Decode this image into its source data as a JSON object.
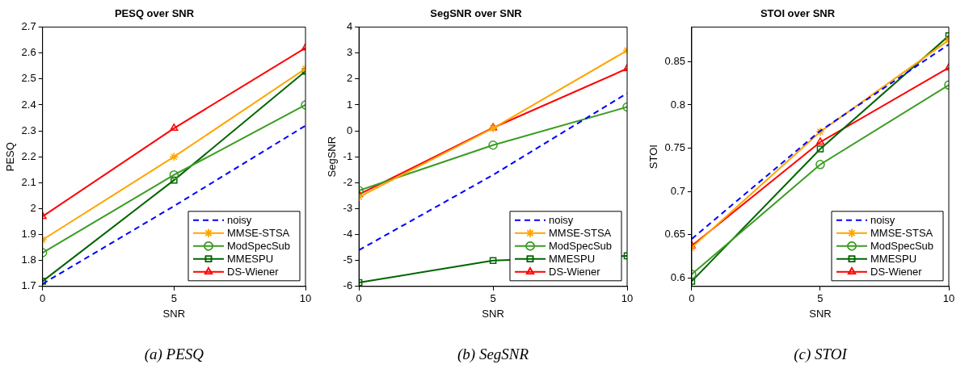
{
  "chart_data": [
    {
      "type": "line",
      "title": "PESQ over SNR",
      "xlabel": "SNR",
      "ylabel": "PESQ",
      "annotations": [
        "(a) PESQ"
      ],
      "x": [
        0,
        5,
        10
      ],
      "xlim": [
        0,
        10
      ],
      "xticks": [
        0,
        5,
        10
      ],
      "ylim": [
        1.7,
        2.7
      ],
      "yticks": [
        1.7,
        1.8,
        1.9,
        2,
        2.1,
        2.2,
        2.3,
        2.4,
        2.5,
        2.6,
        2.7
      ],
      "legend": "bottom right",
      "series": [
        {
          "name": "noisy",
          "color": "#0000ff",
          "values": [
            1.71,
            2.01,
            2.32
          ],
          "marker": "none",
          "line_style": "dashed"
        },
        {
          "name": "MMSE-STSA",
          "color": "#ffa500",
          "values": [
            1.88,
            2.2,
            2.54
          ],
          "marker": "cross",
          "line_style": "solid"
        },
        {
          "name": "ModSpecSub",
          "color": "#3a9d23",
          "values": [
            1.83,
            2.13,
            2.4
          ],
          "marker": "circle",
          "line_style": "solid"
        },
        {
          "name": "MMESPU",
          "color": "#006400",
          "values": [
            1.72,
            2.11,
            2.53
          ],
          "marker": "square",
          "line_style": "solid"
        },
        {
          "name": "DS-Wiener",
          "color": "#ff0000",
          "values": [
            1.97,
            2.31,
            2.62
          ],
          "marker": "triangle",
          "line_style": "solid"
        }
      ]
    },
    {
      "type": "line",
      "title": "SegSNR over SNR",
      "xlabel": "SNR",
      "ylabel": "SegSNR",
      "annotations": [
        "(b) SegSNR"
      ],
      "x": [
        0,
        5,
        10
      ],
      "xlim": [
        0,
        10
      ],
      "xticks": [
        0,
        5,
        10
      ],
      "ylim": [
        -6,
        4
      ],
      "yticks": [
        -6,
        -5,
        -4,
        -3,
        -2,
        -1,
        0,
        1,
        2,
        3,
        4
      ],
      "legend": "bottom right",
      "series": [
        {
          "name": "noisy",
          "color": "#0000ff",
          "values": [
            -4.6,
            -1.7,
            1.45
          ],
          "marker": "none",
          "line_style": "dashed"
        },
        {
          "name": "MMSE-STSA",
          "color": "#ffa500",
          "values": [
            -2.55,
            0.1,
            3.1
          ],
          "marker": "cross",
          "line_style": "solid"
        },
        {
          "name": "ModSpecSub",
          "color": "#3a9d23",
          "values": [
            -2.3,
            -0.55,
            0.92
          ],
          "marker": "circle",
          "line_style": "solid"
        },
        {
          "name": "MMESPU",
          "color": "#006400",
          "values": [
            -5.85,
            -5.0,
            -4.82
          ],
          "marker": "square",
          "line_style": "solid"
        },
        {
          "name": "DS-Wiener",
          "color": "#ff0000",
          "values": [
            -2.45,
            0.12,
            2.4
          ],
          "marker": "triangle",
          "line_style": "solid"
        }
      ]
    },
    {
      "type": "line",
      "title": "STOI over SNR",
      "xlabel": "SNR",
      "ylabel": "STOI",
      "annotations": [
        "(c) STOI"
      ],
      "x": [
        0,
        5,
        10
      ],
      "xlim": [
        0,
        10
      ],
      "xticks": [
        0,
        5,
        10
      ],
      "ylim": [
        0.59,
        0.89
      ],
      "yticks": [
        0.6,
        0.65,
        0.7,
        0.75,
        0.8,
        0.85
      ],
      "legend": "bottom right",
      "series": [
        {
          "name": "noisy",
          "color": "#0000ff",
          "values": [
            0.645,
            0.77,
            0.87
          ],
          "marker": "none",
          "line_style": "dashed"
        },
        {
          "name": "MMSE-STSA",
          "color": "#ffa500",
          "values": [
            0.635,
            0.769,
            0.875
          ],
          "marker": "cross",
          "line_style": "solid"
        },
        {
          "name": "ModSpecSub",
          "color": "#3a9d23",
          "values": [
            0.604,
            0.731,
            0.823
          ],
          "marker": "circle",
          "line_style": "solid"
        },
        {
          "name": "MMESPU",
          "color": "#006400",
          "values": [
            0.596,
            0.749,
            0.88
          ],
          "marker": "square",
          "line_style": "solid"
        },
        {
          "name": "DS-Wiener",
          "color": "#ff0000",
          "values": [
            0.637,
            0.757,
            0.843
          ],
          "marker": "triangle",
          "line_style": "solid"
        }
      ]
    }
  ]
}
